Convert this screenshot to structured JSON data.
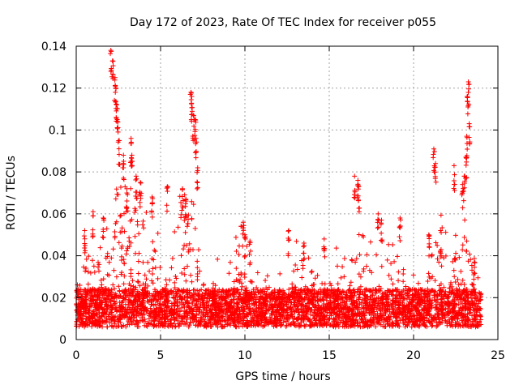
{
  "chart_data": {
    "type": "scatter",
    "title": "Day 172 of 2023, Rate Of TEC Index for receiver p055",
    "xlabel": "GPS time / hours",
    "ylabel": "ROTI / TECUs",
    "xlim": [
      0,
      25
    ],
    "ylim": [
      0,
      0.14
    ],
    "x_ticks": [
      0,
      5,
      10,
      15,
      20,
      25
    ],
    "x_tick_labels": [
      "0",
      "5",
      "10",
      "15",
      "20",
      "25"
    ],
    "y_ticks": [
      0,
      0.02,
      0.04,
      0.06,
      0.08,
      0.1,
      0.12,
      0.14
    ],
    "y_tick_labels": [
      "0",
      "0.02",
      "0.04",
      "0.06",
      "0.08",
      "0.1",
      "0.12",
      "0.14"
    ],
    "grid": true,
    "marker": "+",
    "marker_color": "#ff0000",
    "series": [
      {
        "name": "ROTI",
        "description": "dense per-epoch samples 0-24 h, bulk 0.005-0.03 TECU/s",
        "x": [
          2.05,
          2.15,
          2.3,
          2.35,
          2.4,
          2.45,
          2.55,
          2.8,
          3.0,
          3.25,
          3.3,
          3.55,
          3.8,
          4.5,
          5.4,
          6.3,
          6.5,
          6.8,
          6.85,
          6.95,
          7.05,
          7.1,
          7.2,
          9.9,
          10.0,
          10.3,
          12.6,
          13.5,
          14.7,
          16.5,
          16.7,
          16.75,
          17.9,
          18.1,
          19.2,
          20.9,
          21.2,
          21.3,
          21.6,
          22.4,
          22.9,
          23.0,
          23.1,
          23.15,
          23.2,
          23.25,
          23.3,
          23.6,
          0.5,
          1.0,
          1.6
        ],
        "y": [
          0.138,
          0.133,
          0.125,
          0.12,
          0.112,
          0.104,
          0.095,
          0.088,
          0.072,
          0.096,
          0.088,
          0.078,
          0.075,
          0.068,
          0.073,
          0.072,
          0.067,
          0.118,
          0.116,
          0.107,
          0.105,
          0.096,
          0.082,
          0.056,
          0.05,
          0.047,
          0.052,
          0.046,
          0.048,
          0.078,
          0.076,
          0.073,
          0.06,
          0.057,
          0.058,
          0.05,
          0.091,
          0.084,
          0.052,
          0.083,
          0.074,
          0.078,
          0.087,
          0.097,
          0.116,
          0.123,
          0.103,
          0.037,
          0.052,
          0.061,
          0.058
        ]
      }
    ]
  }
}
